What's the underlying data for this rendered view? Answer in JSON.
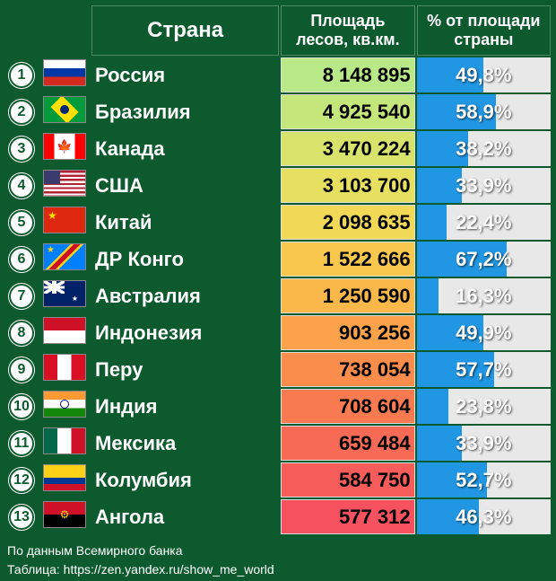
{
  "headers": {
    "country": "Страна",
    "area": "Площадь лесов, кв.км.",
    "percent": "% от площади страны"
  },
  "pct_max_scale": 100,
  "area_gradient": {
    "top_color": "#b8e986",
    "mid_color": "#f8e71c",
    "bottom_color": "#f5515f"
  },
  "rows": [
    {
      "rank": "1",
      "flag_class": "flag-russia",
      "country": "Россия",
      "area": "8 148 895",
      "area_bg": "#b8e986",
      "pct": "49,8%",
      "pct_val": 49.8
    },
    {
      "rank": "2",
      "flag_class": "flag-brazil",
      "country": "Бразилия",
      "area": "4 925 540",
      "area_bg": "#c5e67a",
      "pct": "58,9%",
      "pct_val": 58.9
    },
    {
      "rank": "3",
      "flag_class": "flag-canada",
      "country": "Канада",
      "area": "3 470 224",
      "area_bg": "#d8e36c",
      "pct": "38,2%",
      "pct_val": 38.2
    },
    {
      "rank": "4",
      "flag_class": "flag-usa",
      "country": "США",
      "area": "3 103 700",
      "area_bg": "#e6df60",
      "pct": "33,9%",
      "pct_val": 33.9
    },
    {
      "rank": "5",
      "flag_class": "flag-china",
      "country": "Китай",
      "area": "2 098 635",
      "area_bg": "#f1d856",
      "pct": "22,4%",
      "pct_val": 22.4
    },
    {
      "rank": "6",
      "flag_class": "flag-drc",
      "country": "ДР Конго",
      "area": "1 522 666",
      "area_bg": "#f8c74e",
      "pct": "67,2%",
      "pct_val": 67.2
    },
    {
      "rank": "7",
      "flag_class": "flag-australia",
      "country": "Австралия",
      "area": "1 250 590",
      "area_bg": "#fab74a",
      "pct": "16,3%",
      "pct_val": 16.3
    },
    {
      "rank": "8",
      "flag_class": "flag-indonesia",
      "country": "Индонезия",
      "area": "903 256",
      "area_bg": "#fba24a",
      "pct": "49,9%",
      "pct_val": 49.9
    },
    {
      "rank": "9",
      "flag_class": "flag-peru",
      "country": "Перу",
      "area": "738 054",
      "area_bg": "#fa8d4c",
      "pct": "57,7%",
      "pct_val": 57.7
    },
    {
      "rank": "10",
      "flag_class": "flag-india",
      "country": "Индия",
      "area": "708 604",
      "area_bg": "#f87a50",
      "pct": "23,8%",
      "pct_val": 23.8
    },
    {
      "rank": "11",
      "flag_class": "flag-mexico",
      "country": "Мексика",
      "area": "659 484",
      "area_bg": "#f76a55",
      "pct": "33,9%",
      "pct_val": 33.9
    },
    {
      "rank": "12",
      "flag_class": "flag-colombia",
      "country": "Колумбия",
      "area": "584 750",
      "area_bg": "#f65c5a",
      "pct": "52,7%",
      "pct_val": 52.7
    },
    {
      "rank": "13",
      "flag_class": "flag-angola",
      "country": "Ангола",
      "area": "577 312",
      "area_bg": "#f5515f",
      "pct": "46,3%",
      "pct_val": 46.3
    }
  ],
  "footer": {
    "source": "По данным Всемирного банка",
    "credit": "Таблица: https://zen.yandex.ru/show_me_world"
  }
}
